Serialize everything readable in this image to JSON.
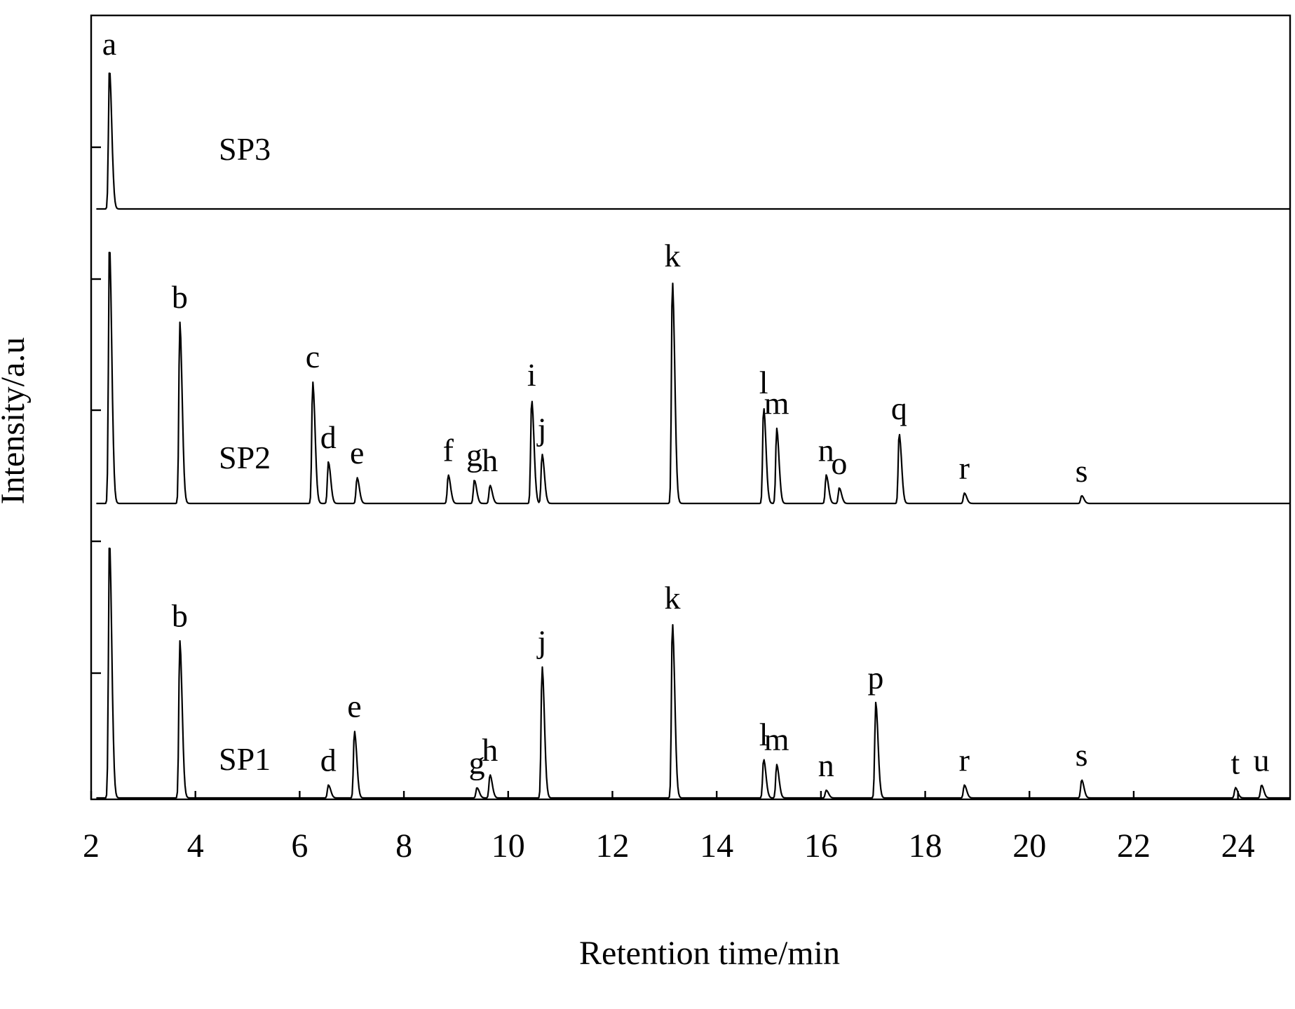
{
  "chart_data": {
    "type": "line",
    "xlabel": "Retention time/min",
    "ylabel": "Intensity/a.u",
    "xlim": [
      2,
      25
    ],
    "x_ticks": [
      2,
      4,
      6,
      8,
      10,
      12,
      14,
      16,
      18,
      20,
      22,
      24
    ],
    "grid": false,
    "series": [
      {
        "name": "SP3",
        "baseline": 0,
        "peaks": [
          {
            "label": "a",
            "x": 2.35,
            "height": 1.0
          }
        ]
      },
      {
        "name": "SP2",
        "baseline": 0,
        "peaks": [
          {
            "label": "",
            "x": 2.35,
            "height": 1.0
          },
          {
            "label": "b",
            "x": 3.7,
            "height": 0.7
          },
          {
            "label": "c",
            "x": 6.25,
            "height": 0.47
          },
          {
            "label": "d",
            "x": 6.55,
            "height": 0.16
          },
          {
            "label": "e",
            "x": 7.1,
            "height": 0.1
          },
          {
            "label": "f",
            "x": 8.85,
            "height": 0.11
          },
          {
            "label": "g",
            "x": 9.35,
            "height": 0.09
          },
          {
            "label": "h",
            "x": 9.65,
            "height": 0.07
          },
          {
            "label": "i",
            "x": 10.45,
            "height": 0.4
          },
          {
            "label": "j",
            "x": 10.65,
            "height": 0.19
          },
          {
            "label": "k",
            "x": 13.15,
            "height": 0.86
          },
          {
            "label": "l",
            "x": 14.9,
            "height": 0.37
          },
          {
            "label": "m",
            "x": 15.15,
            "height": 0.29
          },
          {
            "label": "n",
            "x": 16.1,
            "height": 0.11
          },
          {
            "label": "o",
            "x": 16.35,
            "height": 0.06
          },
          {
            "label": "q",
            "x": 17.5,
            "height": 0.27
          },
          {
            "label": "r",
            "x": 18.75,
            "height": 0.04
          },
          {
            "label": "s",
            "x": 21.0,
            "height": 0.03
          }
        ]
      },
      {
        "name": "SP1",
        "baseline": 0,
        "peaks": [
          {
            "label": "",
            "x": 2.35,
            "height": 1.0
          },
          {
            "label": "b",
            "x": 3.7,
            "height": 0.61
          },
          {
            "label": "d",
            "x": 6.55,
            "height": 0.05
          },
          {
            "label": "e",
            "x": 7.05,
            "height": 0.26
          },
          {
            "label": "g",
            "x": 9.4,
            "height": 0.04
          },
          {
            "label": "h",
            "x": 9.65,
            "height": 0.09
          },
          {
            "label": "j",
            "x": 10.65,
            "height": 0.51
          },
          {
            "label": "k",
            "x": 13.15,
            "height": 0.68
          },
          {
            "label": "l",
            "x": 14.9,
            "height": 0.15
          },
          {
            "label": "m",
            "x": 15.15,
            "height": 0.13
          },
          {
            "label": "n",
            "x": 16.1,
            "height": 0.03
          },
          {
            "label": "p",
            "x": 17.05,
            "height": 0.37
          },
          {
            "label": "r",
            "x": 18.75,
            "height": 0.05
          },
          {
            "label": "s",
            "x": 21.0,
            "height": 0.07
          },
          {
            "label": "t",
            "x": 23.95,
            "height": 0.04
          },
          {
            "label": "u",
            "x": 24.45,
            "height": 0.05
          }
        ]
      }
    ]
  }
}
